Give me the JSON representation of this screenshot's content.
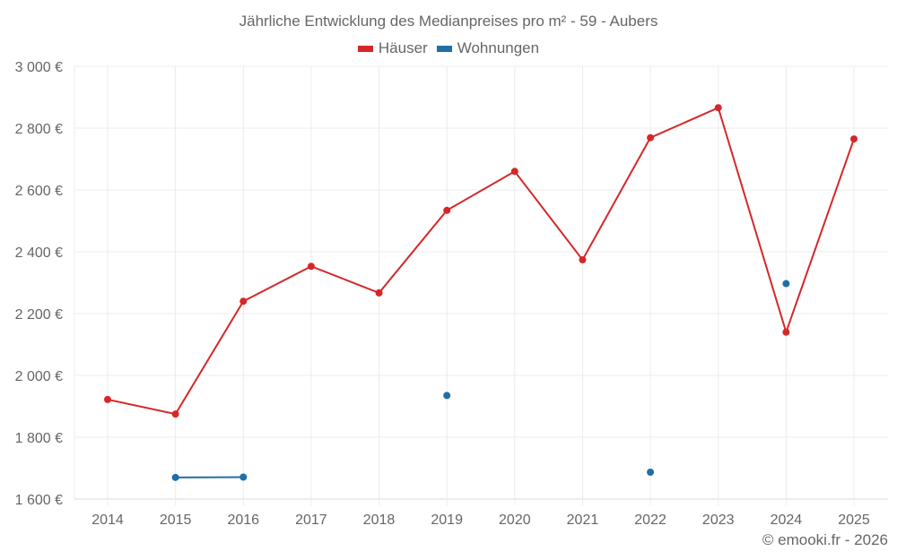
{
  "chart_data": {
    "type": "line",
    "title": "Jährliche Entwicklung des Medianpreises pro m² - 59 - Aubers",
    "xlabel": "",
    "ylabel": "",
    "categories": [
      "2014",
      "2015",
      "2016",
      "2017",
      "2018",
      "2019",
      "2020",
      "2021",
      "2022",
      "2023",
      "2024",
      "2025"
    ],
    "series": [
      {
        "name": "Häuser",
        "color": "#d62728",
        "values": [
          1922,
          1875,
          2240,
          2353,
          2267,
          2534,
          2660,
          2374,
          2769,
          2866,
          2140,
          2765
        ]
      },
      {
        "name": "Wohnungen",
        "color": "#1f6fa8",
        "values": [
          null,
          1670,
          1671,
          null,
          null,
          1935,
          null,
          null,
          1687,
          null,
          2297,
          null
        ]
      }
    ],
    "ylim": [
      1600,
      3000
    ],
    "yticks": [
      1600,
      1800,
      2000,
      2200,
      2400,
      2600,
      2800,
      3000
    ],
    "ytick_labels": [
      "1 600 €",
      "1 800 €",
      "2 000 €",
      "2 200 €",
      "2 400 €",
      "2 600 €",
      "2 800 €",
      "3 000 €"
    ],
    "grid": true,
    "legend_position": "top-center"
  },
  "legend": {
    "items": [
      {
        "label": "Häuser",
        "color": "#d62728"
      },
      {
        "label": "Wohnungen",
        "color": "#1f6fa8"
      }
    ]
  },
  "credit": "© emooki.fr - 2026"
}
